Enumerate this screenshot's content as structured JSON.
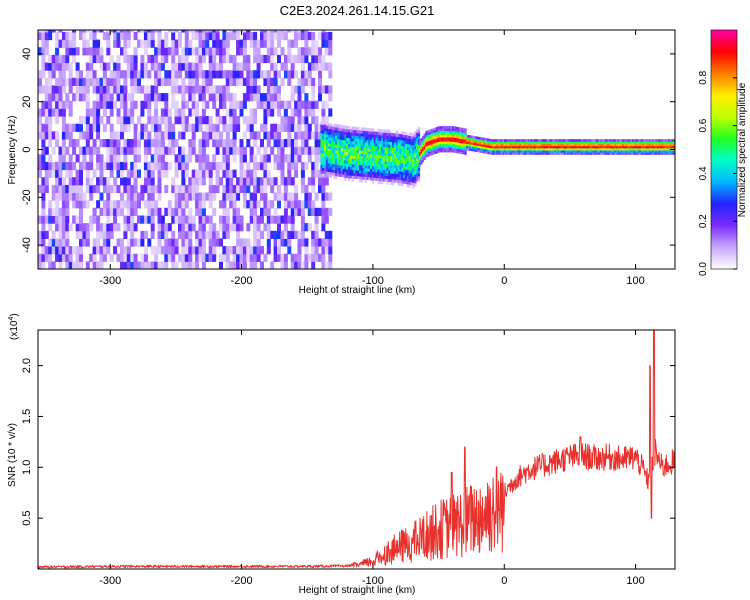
{
  "title": "C2E3.2024.261.14.15.G21",
  "chart_data": [
    {
      "type": "heatmap",
      "xlabel": "Height of straight line (km)",
      "ylabel": "Frequency (Hz)",
      "xlim": [
        -355,
        130
      ],
      "ylim": [
        -50,
        50
      ],
      "xticks": [
        -300,
        -200,
        -100,
        0,
        100
      ],
      "yticks": [
        -40,
        -20,
        0,
        20,
        40
      ],
      "grid": false,
      "colorbar": {
        "label": "Normalized spectral amplitude",
        "range": [
          0,
          1
        ],
        "ticks": [
          0.0,
          0.2,
          0.4,
          0.6,
          0.8
        ],
        "colors": [
          "#ffffff",
          "#c9a7ff",
          "#7a2cff",
          "#2222ff",
          "#00b7ff",
          "#00ffc8",
          "#22ff22",
          "#bfff00",
          "#ffee00",
          "#ff7a00",
          "#ff0000",
          "#ff00aa"
        ]
      },
      "regions": [
        {
          "x_range": [
            -355,
            -133
          ],
          "description_value": "broadband noise, amplitude 0.05-0.3"
        },
        {
          "x_range": [
            -140,
            -65
          ],
          "center_freq_hz": -3,
          "spread_hz": 8,
          "amplitude": [
            0.3,
            0.6
          ]
        },
        {
          "x_range": [
            -65,
            130
          ],
          "center_freq_hz": 0,
          "spread_hz": 2,
          "amplitude": [
            0.8,
            1.0
          ]
        }
      ],
      "ridge": {
        "x": [
          -140,
          -120,
          -100,
          -80,
          -70,
          -65,
          -60,
          -50,
          -40,
          -30,
          -20,
          -10,
          0,
          20,
          40,
          60,
          80,
          100,
          110,
          120,
          130
        ],
        "freq": [
          0,
          -2,
          -3,
          -4,
          -5,
          -2,
          2,
          4,
          4,
          3,
          2,
          1,
          1,
          1,
          1,
          1,
          1,
          1,
          1,
          1,
          1
        ]
      }
    },
    {
      "type": "line",
      "xlabel": "Height of straight line (km)",
      "ylabel": "SNR (10 * v/v)",
      "y_multiplier": "(x10",
      "y_multiplier_exp": "4",
      "xlim": [
        -355,
        130
      ],
      "ylim": [
        0,
        23500
      ],
      "xticks": [
        -300,
        -200,
        -100,
        0,
        100
      ],
      "yticks": [
        0.5,
        1.0,
        1.5,
        2.0
      ],
      "grid": false,
      "color": "#e8312c",
      "series": [
        {
          "x": [
            -355,
            -300,
            -250,
            -200,
            -150,
            -120,
            -110,
            -100,
            -90,
            -80,
            -70,
            -60,
            -50,
            -40,
            -30,
            -20,
            -10,
            0,
            10,
            20,
            30,
            40,
            50,
            60,
            70,
            80,
            90,
            100,
            105,
            110,
            115,
            120,
            130
          ],
          "values": [
            200,
            250,
            250,
            250,
            260,
            300,
            500,
            900,
            1800,
            2500,
            3000,
            3800,
            4500,
            5000,
            5400,
            6000,
            6800,
            7500,
            9000,
            9800,
            10200,
            10600,
            11000,
            11100,
            10900,
            11000,
            10800,
            11000,
            10000,
            8500,
            11500,
            10000,
            10600
          ]
        }
      ],
      "spikes": [
        {
          "x": 114,
          "y": 23500
        },
        {
          "x": 111,
          "y": 20000
        },
        {
          "x": 58,
          "y": 13000
        },
        {
          "x": -30,
          "y": 12000
        },
        {
          "x": -40,
          "y": 9500
        },
        {
          "x": 112,
          "y": 5000
        }
      ]
    }
  ]
}
